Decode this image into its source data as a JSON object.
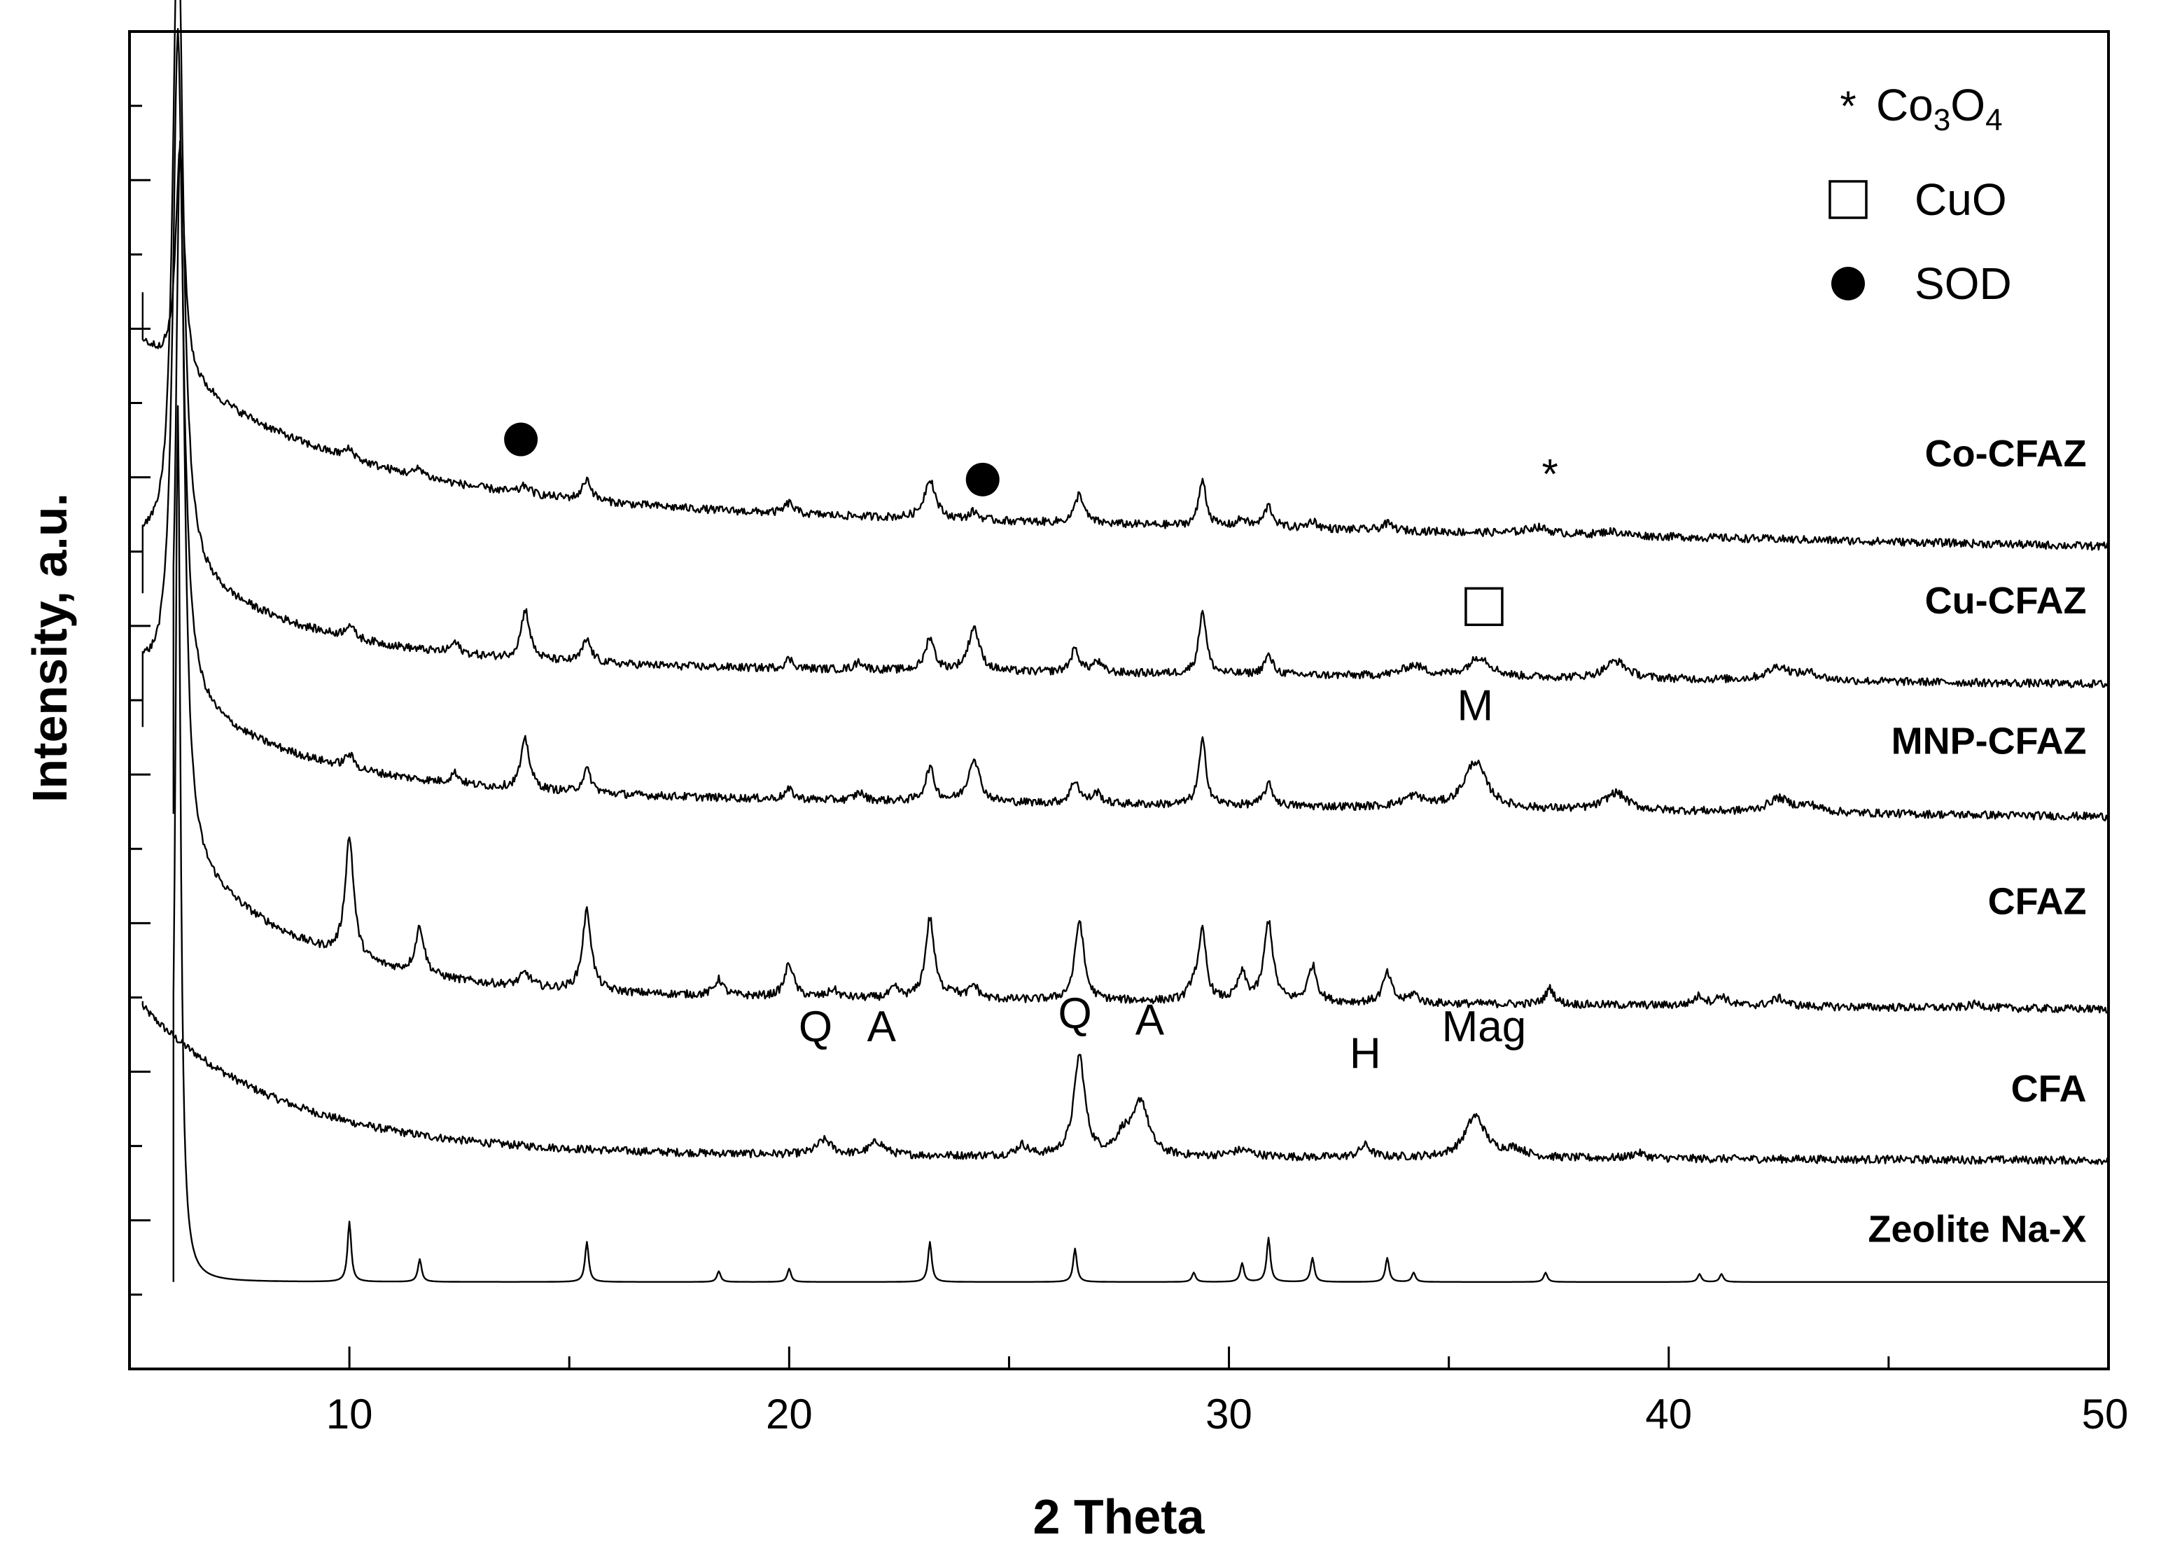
{
  "chart_data": {
    "type": "line",
    "title": "",
    "xlabel": "2 Theta",
    "ylabel": "Intensity, a.u.",
    "xlim": [
      5,
      50
    ],
    "xticks": [
      10,
      20,
      30,
      40,
      50
    ],
    "x_minor_step": 5,
    "y_tick_count": 17,
    "grid": false,
    "series": [
      {
        "name": "Zeolite Na-X",
        "baseline": 0.065,
        "start": 0.065,
        "decay": 0,
        "decay_rate": 0.25,
        "x_start": 6.0,
        "noise": 0,
        "tail": 0,
        "peaks": [
          [
            6.1,
            0.655,
            0.07
          ],
          [
            10.0,
            0.045,
            0.05
          ],
          [
            11.6,
            0.017,
            0.05
          ],
          [
            15.4,
            0.03,
            0.05
          ],
          [
            18.4,
            0.008,
            0.05
          ],
          [
            20.0,
            0.01,
            0.05
          ],
          [
            23.2,
            0.03,
            0.05
          ],
          [
            26.5,
            0.025,
            0.05
          ],
          [
            29.2,
            0.007,
            0.05
          ],
          [
            30.3,
            0.014,
            0.05
          ],
          [
            30.9,
            0.033,
            0.05
          ],
          [
            31.9,
            0.018,
            0.05
          ],
          [
            33.6,
            0.018,
            0.05
          ],
          [
            34.2,
            0.007,
            0.05
          ],
          [
            37.2,
            0.007,
            0.05
          ],
          [
            40.7,
            0.006,
            0.05
          ],
          [
            41.2,
            0.006,
            0.05
          ]
        ]
      },
      {
        "name": "CFA",
        "baseline": 0.156,
        "start": 0.275,
        "decay": 0.11,
        "decay_rate": 0.32,
        "x_start": 5.3,
        "noise": 0.003,
        "tail": 0.005,
        "peaks": [
          [
            20.8,
            0.011,
            0.2
          ],
          [
            22.0,
            0.01,
            0.2
          ],
          [
            25.3,
            0.008,
            0.15
          ],
          [
            26.6,
            0.075,
            0.15
          ],
          [
            27.6,
            0.015,
            0.2
          ],
          [
            28.0,
            0.04,
            0.2
          ],
          [
            30.3,
            0.005,
            0.3
          ],
          [
            33.1,
            0.009,
            0.15
          ],
          [
            35.6,
            0.031,
            0.28
          ],
          [
            36.5,
            0.006,
            0.3
          ],
          [
            39.3,
            0.004,
            0.2
          ]
        ]
      },
      {
        "name": "CFAZ",
        "baseline": 0.269,
        "start": 0.415,
        "decay": 0.11,
        "decay_rate": 0.35,
        "x_start": 6.0,
        "noise": 0.003,
        "tail": 0.012,
        "peaks": [
          [
            6.15,
            0.53,
            0.12
          ],
          [
            10.0,
            0.09,
            0.12
          ],
          [
            11.6,
            0.035,
            0.12
          ],
          [
            14.0,
            0.01,
            0.15
          ],
          [
            15.4,
            0.06,
            0.12
          ],
          [
            18.4,
            0.012,
            0.12
          ],
          [
            20.0,
            0.025,
            0.12
          ],
          [
            21.0,
            0.006,
            0.12
          ],
          [
            22.4,
            0.007,
            0.12
          ],
          [
            23.2,
            0.06,
            0.12
          ],
          [
            23.7,
            0.006,
            0.12
          ],
          [
            24.2,
            0.01,
            0.12
          ],
          [
            26.6,
            0.06,
            0.12
          ],
          [
            29.2,
            0.012,
            0.12
          ],
          [
            29.4,
            0.05,
            0.1
          ],
          [
            30.3,
            0.02,
            0.12
          ],
          [
            30.9,
            0.06,
            0.12
          ],
          [
            31.9,
            0.027,
            0.12
          ],
          [
            33.6,
            0.022,
            0.12
          ],
          [
            34.2,
            0.007,
            0.12
          ],
          [
            37.3,
            0.012,
            0.12
          ],
          [
            40.7,
            0.007,
            0.15
          ],
          [
            41.2,
            0.007,
            0.15
          ],
          [
            42.5,
            0.006,
            0.2
          ],
          [
            47.0,
            0.003,
            0.2
          ]
        ]
      },
      {
        "name": "MNP-CFAZ",
        "baseline": 0.413,
        "start": 0.48,
        "decay": 0.09,
        "decay_rate": 0.32,
        "x_start": 5.3,
        "noise": 0.003,
        "tail": 0.018,
        "peaks": [
          [
            6.1,
            0.5,
            0.14
          ],
          [
            10.0,
            0.01,
            0.12
          ],
          [
            12.4,
            0.008,
            0.12
          ],
          [
            14.0,
            0.037,
            0.12
          ],
          [
            15.4,
            0.017,
            0.12
          ],
          [
            20.0,
            0.007,
            0.12
          ],
          [
            21.6,
            0.006,
            0.12
          ],
          [
            23.2,
            0.025,
            0.12
          ],
          [
            24.2,
            0.033,
            0.15
          ],
          [
            26.5,
            0.017,
            0.12
          ],
          [
            27.0,
            0.008,
            0.12
          ],
          [
            29.4,
            0.048,
            0.1
          ],
          [
            30.9,
            0.016,
            0.12
          ],
          [
            34.2,
            0.008,
            0.3
          ],
          [
            35.6,
            0.035,
            0.3
          ],
          [
            38.8,
            0.013,
            0.3
          ],
          [
            42.5,
            0.01,
            0.3
          ],
          [
            43.2,
            0.005,
            0.3
          ]
        ]
      },
      {
        "name": "Cu-CFAZ",
        "baseline": 0.512,
        "start": 0.58,
        "decay": 0.09,
        "decay_rate": 0.32,
        "x_start": 5.3,
        "noise": 0.003,
        "tail": 0.016,
        "peaks": [
          [
            6.1,
            0.5,
            0.14
          ],
          [
            10.0,
            0.01,
            0.12
          ],
          [
            12.4,
            0.008,
            0.12
          ],
          [
            14.0,
            0.037,
            0.12
          ],
          [
            15.4,
            0.017,
            0.12
          ],
          [
            20.0,
            0.007,
            0.12
          ],
          [
            21.6,
            0.006,
            0.12
          ],
          [
            23.2,
            0.025,
            0.12
          ],
          [
            24.2,
            0.033,
            0.15
          ],
          [
            26.5,
            0.017,
            0.12
          ],
          [
            27.0,
            0.008,
            0.12
          ],
          [
            29.4,
            0.048,
            0.1
          ],
          [
            30.9,
            0.014,
            0.12
          ],
          [
            34.2,
            0.008,
            0.3
          ],
          [
            35.7,
            0.015,
            0.3
          ],
          [
            38.8,
            0.013,
            0.3
          ],
          [
            42.5,
            0.01,
            0.3
          ],
          [
            43.2,
            0.005,
            0.3
          ]
        ]
      },
      {
        "name": "Co-CFAZ",
        "baseline": 0.615,
        "start": 0.805,
        "decay": 0.12,
        "decay_rate": 0.25,
        "x_start": 5.3,
        "noise": 0.003,
        "tail": 0.032,
        "peaks": [
          [
            6.15,
            0.17,
            0.12
          ],
          [
            10.0,
            0.007,
            0.15
          ],
          [
            11.6,
            0.006,
            0.12
          ],
          [
            14.0,
            0.006,
            0.12
          ],
          [
            15.4,
            0.016,
            0.12
          ],
          [
            20.0,
            0.008,
            0.12
          ],
          [
            23.2,
            0.03,
            0.15
          ],
          [
            24.2,
            0.006,
            0.12
          ],
          [
            26.6,
            0.022,
            0.12
          ],
          [
            29.4,
            0.035,
            0.1
          ],
          [
            30.3,
            0.006,
            0.12
          ],
          [
            30.9,
            0.016,
            0.12
          ],
          [
            31.9,
            0.006,
            0.12
          ],
          [
            33.6,
            0.005,
            0.15
          ],
          [
            37.0,
            0.005,
            0.3
          ],
          [
            38.7,
            0.003,
            0.3
          ]
        ]
      }
    ],
    "series_labels": [
      {
        "text": "Co-CFAZ",
        "x": 49.5,
        "y": 0.675
      },
      {
        "text": "Cu-CFAZ",
        "x": 49.5,
        "y": 0.565
      },
      {
        "text": "MNP-CFAZ",
        "x": 49.5,
        "y": 0.46
      },
      {
        "text": "CFAZ",
        "x": 49.5,
        "y": 0.34
      },
      {
        "text": "CFA",
        "x": 49.5,
        "y": 0.2
      },
      {
        "text": "Zeolite Na-X",
        "x": 49.5,
        "y": 0.095
      }
    ],
    "annotations": [
      {
        "text": "Q",
        "x": 20.6,
        "y": 0.245
      },
      {
        "text": "A",
        "x": 22.1,
        "y": 0.245
      },
      {
        "text": "Q",
        "x": 26.5,
        "y": 0.255
      },
      {
        "text": "A",
        "x": 28.2,
        "y": 0.25
      },
      {
        "text": "H",
        "x": 33.1,
        "y": 0.225
      },
      {
        "text": "Mag",
        "x": 35.8,
        "y": 0.245
      },
      {
        "text": "M",
        "x": 35.6,
        "y": 0.485
      }
    ],
    "markers": [
      {
        "type": "SOD",
        "x": 13.9,
        "y": 0.695
      },
      {
        "type": "SOD",
        "x": 24.4,
        "y": 0.665
      },
      {
        "type": "CuO",
        "x": 35.8,
        "y": 0.57
      },
      {
        "type": "Co3O4",
        "x": 37.3,
        "y": 0.67
      }
    ],
    "legend": {
      "position": "top-right",
      "entries": [
        {
          "symbol": "Co3O4",
          "label": "Co3O4",
          "main": "Co",
          "sub1": "3",
          "mid": "O",
          "sub2": "4"
        },
        {
          "symbol": "CuO",
          "label": "CuO"
        },
        {
          "symbol": "SOD",
          "label": "SOD"
        }
      ]
    }
  }
}
